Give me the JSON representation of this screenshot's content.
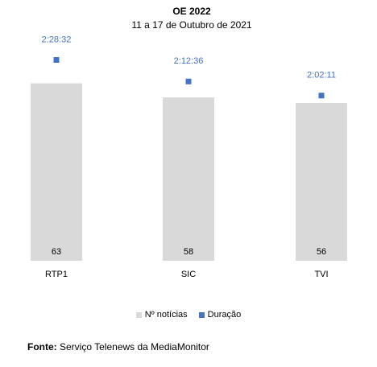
{
  "chart_data": {
    "type": "bar",
    "title": "OE 2022",
    "subtitle": "11 a 17 de Outubro de 2021",
    "categories": [
      "RTP1",
      "SIC",
      "TVI"
    ],
    "series": [
      {
        "name": "Nº notícias",
        "values": [
          63,
          58,
          56
        ],
        "color": "#D9D9D9",
        "kind": "bar"
      },
      {
        "name": "Duração",
        "values": [
          "2:28:32",
          "2:12:36",
          "2:02:11"
        ],
        "seconds": [
          8912,
          7956,
          7331
        ],
        "color": "#4472C4",
        "kind": "marker"
      }
    ],
    "bar_ylim": [
      0,
      80
    ],
    "duration_ylim_seconds": [
      0,
      10000
    ],
    "legend_position": "bottom",
    "grid": false
  },
  "source": {
    "label": "Fonte:",
    "text": "Serviço Telenews da MediaMonitor"
  }
}
